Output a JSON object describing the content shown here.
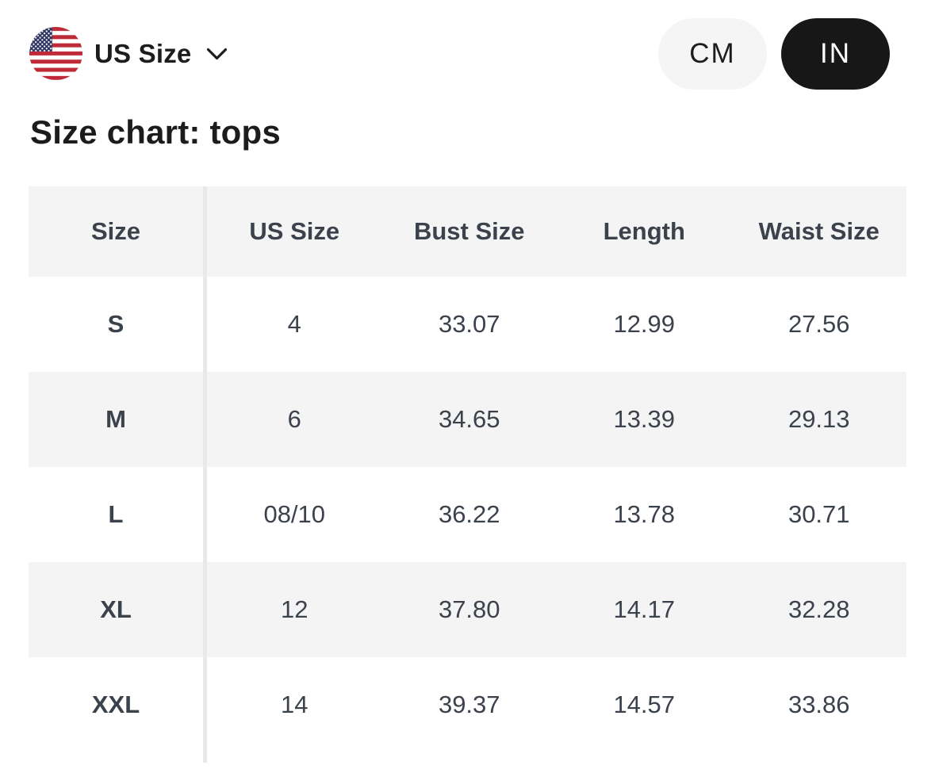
{
  "header": {
    "region_selector": {
      "label": "US Size",
      "flag": "us-flag-icon",
      "chevron": "chevron-down-icon"
    },
    "unit_toggle": {
      "active": "IN",
      "options": [
        {
          "label": "CM"
        },
        {
          "label": "IN"
        }
      ]
    }
  },
  "title": "Size chart: tops",
  "table": {
    "columns": [
      "Size",
      "US Size",
      "Bust Size",
      "Length",
      "Waist Size"
    ],
    "rows": [
      [
        "S",
        "4",
        "33.07",
        "12.99",
        "27.56"
      ],
      [
        "M",
        "6",
        "34.65",
        "13.39",
        "29.13"
      ],
      [
        "L",
        "08/10",
        "36.22",
        "13.78",
        "30.71"
      ],
      [
        "XL",
        "12",
        "37.80",
        "14.17",
        "32.28"
      ],
      [
        "XXL",
        "14",
        "39.37",
        "14.57",
        "33.86"
      ]
    ]
  },
  "colors": {
    "toggle_active_bg": "#171717",
    "toggle_active_text": "#ffffff",
    "toggle_inactive_bg": "#f5f5f5",
    "row_stripe_bg": "#f4f4f5",
    "table_text": "#3c424c",
    "heading_text": "#1c1c1e",
    "divider": "#e9e9ea",
    "flag_red": "#bf2a38",
    "flag_blue": "#2e3560"
  }
}
